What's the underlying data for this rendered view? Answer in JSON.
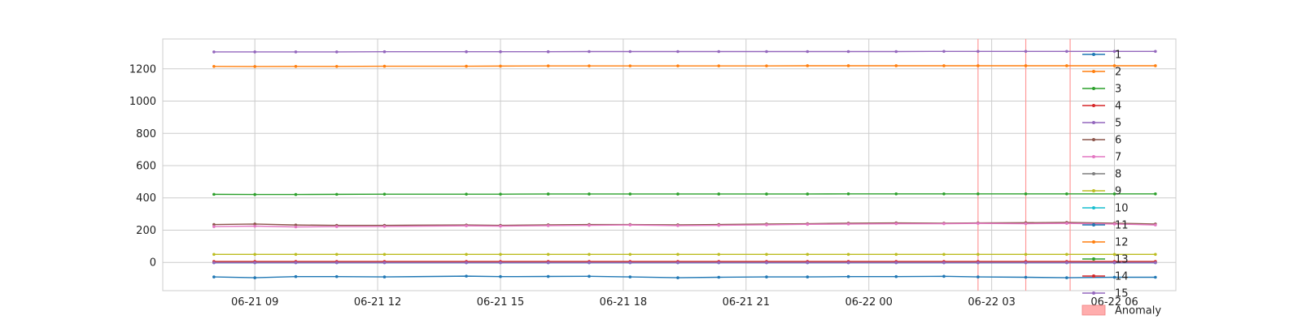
{
  "chart_data": {
    "type": "line",
    "title": "",
    "xlabel": "",
    "ylabel": "",
    "xlim": [
      "2025-06-21T06:45",
      "2025-06-22T07:30"
    ],
    "ylim": [
      -175,
      1385
    ],
    "grid": true,
    "legend_placement": "right",
    "x_ticks": [
      "2025-06-21T09:00",
      "2025-06-21T12:00",
      "2025-06-21T15:00",
      "2025-06-21T18:00",
      "2025-06-21T21:00",
      "2025-06-22T00:00",
      "2025-06-22T03:00",
      "2025-06-22T06:00"
    ],
    "x_tick_labels": [
      "06-21 09",
      "06-21 12",
      "06-21 15",
      "06-21 18",
      "06-21 21",
      "06-22 00",
      "06-22 03",
      "06-22 06"
    ],
    "y_ticks": [
      0,
      200,
      400,
      600,
      800,
      1000,
      1200
    ],
    "y_tick_labels": [
      "0",
      "200",
      "400",
      "600",
      "800",
      "1000",
      "1200"
    ],
    "x": [
      "2025-06-21T08:00",
      "2025-06-21T09:00",
      "2025-06-21T10:00",
      "2025-06-21T11:00",
      "2025-06-21T12:10",
      "2025-06-21T14:10",
      "2025-06-21T15:00",
      "2025-06-21T16:10",
      "2025-06-21T17:10",
      "2025-06-21T18:10",
      "2025-06-21T19:20",
      "2025-06-21T20:20",
      "2025-06-21T21:30",
      "2025-06-21T22:30",
      "2025-06-21T23:30",
      "2025-06-22T00:40",
      "2025-06-22T01:50",
      "2025-06-22T02:40",
      "2025-06-22T03:50",
      "2025-06-22T04:50",
      "2025-06-22T06:00",
      "2025-06-22T07:00"
    ],
    "series": [
      {
        "name": "1",
        "color": "#1f77b4",
        "values": [
          -90,
          -95,
          -88,
          -88,
          -90,
          -85,
          -88,
          -87,
          -86,
          -90,
          -95,
          -92,
          -90,
          -90,
          -88,
          -88,
          -86,
          -90,
          -92,
          -95,
          -92,
          -92
        ]
      },
      {
        "name": "2",
        "color": "#ff7f0e",
        "values": [
          1215,
          1214,
          1215,
          1215,
          1216,
          1216,
          1217,
          1218,
          1218,
          1218,
          1218,
          1218,
          1218,
          1219,
          1219,
          1219,
          1219,
          1219,
          1219,
          1219,
          1219,
          1219
        ]
      },
      {
        "name": "3",
        "color": "#2ca02c",
        "values": [
          422,
          421,
          421,
          422,
          423,
          423,
          423,
          424,
          424,
          424,
          424,
          424,
          424,
          424,
          425,
          425,
          425,
          425,
          425,
          425,
          425,
          425
        ]
      },
      {
        "name": "4",
        "color": "#d62728",
        "values": [
          3,
          3,
          3,
          3,
          3,
          3,
          3,
          3,
          3,
          3,
          3,
          3,
          3,
          3,
          3,
          3,
          3,
          3,
          3,
          3,
          3,
          3
        ]
      },
      {
        "name": "5",
        "color": "#9467bd",
        "values": [
          1305,
          1305,
          1305,
          1305,
          1306,
          1306,
          1306,
          1306,
          1307,
          1307,
          1307,
          1307,
          1307,
          1307,
          1307,
          1307,
          1308,
          1308,
          1308,
          1308,
          1308,
          1308
        ]
      },
      {
        "name": "6",
        "color": "#8c564b",
        "values": [
          235,
          238,
          232,
          230,
          230,
          232,
          230,
          233,
          235,
          235,
          233,
          235,
          238,
          240,
          243,
          245,
          243,
          245,
          246,
          248,
          243,
          238
        ]
      },
      {
        "name": "7",
        "color": "#e377c2",
        "values": [
          222,
          225,
          220,
          222,
          223,
          227,
          225,
          228,
          230,
          232,
          228,
          230,
          233,
          236,
          238,
          240,
          240,
          242,
          240,
          242,
          238,
          232
        ]
      },
      {
        "name": "8",
        "color": "#7f7f7f",
        "values": [
          0,
          0,
          0,
          0,
          0,
          0,
          0,
          0,
          0,
          0,
          0,
          0,
          0,
          0,
          0,
          0,
          0,
          0,
          0,
          0,
          0,
          0
        ]
      },
      {
        "name": "9",
        "color": "#bcbd22",
        "values": [
          50,
          50,
          50,
          50,
          50,
          50,
          50,
          50,
          50,
          50,
          50,
          50,
          50,
          50,
          50,
          50,
          50,
          50,
          50,
          50,
          50,
          50
        ]
      },
      {
        "name": "10",
        "color": "#17becf",
        "values": [
          1,
          1,
          1,
          1,
          1,
          1,
          1,
          1,
          1,
          1,
          1,
          1,
          1,
          1,
          1,
          1,
          1,
          1,
          1,
          1,
          1,
          1
        ]
      },
      {
        "name": "11",
        "color": "#1f77b4",
        "values": [
          -2,
          -2,
          -2,
          -2,
          -2,
          -2,
          -2,
          -2,
          -2,
          -2,
          -2,
          -2,
          -2,
          -2,
          -2,
          -2,
          -2,
          -2,
          -2,
          -2,
          -2,
          -2
        ]
      },
      {
        "name": "12",
        "color": "#ff7f0e",
        "values": [
          2,
          2,
          2,
          2,
          2,
          2,
          2,
          2,
          2,
          2,
          2,
          2,
          2,
          2,
          2,
          2,
          2,
          2,
          2,
          2,
          2,
          2
        ]
      },
      {
        "name": "13",
        "color": "#2ca02c",
        "values": [
          4,
          4,
          4,
          4,
          4,
          4,
          4,
          4,
          4,
          4,
          4,
          4,
          4,
          4,
          4,
          4,
          4,
          4,
          4,
          4,
          4,
          4
        ]
      },
      {
        "name": "14",
        "color": "#d62728",
        "values": [
          6,
          6,
          6,
          6,
          6,
          6,
          6,
          6,
          6,
          6,
          6,
          6,
          6,
          6,
          6,
          6,
          6,
          6,
          6,
          6,
          6,
          6
        ]
      },
      {
        "name": "15",
        "color": "#9467bd",
        "values": [
          -1,
          -1,
          -1,
          -1,
          -1,
          -1,
          -1,
          -1,
          -1,
          -1,
          -1,
          -1,
          -1,
          -1,
          -1,
          -1,
          -1,
          -1,
          -1,
          -1,
          -1,
          -1
        ]
      }
    ],
    "anomalies": [
      "2025-06-22T02:40",
      "2025-06-22T03:50",
      "2025-06-22T04:55"
    ],
    "anomaly_label": "Anomaly",
    "anomaly_color": "#ff9999"
  }
}
